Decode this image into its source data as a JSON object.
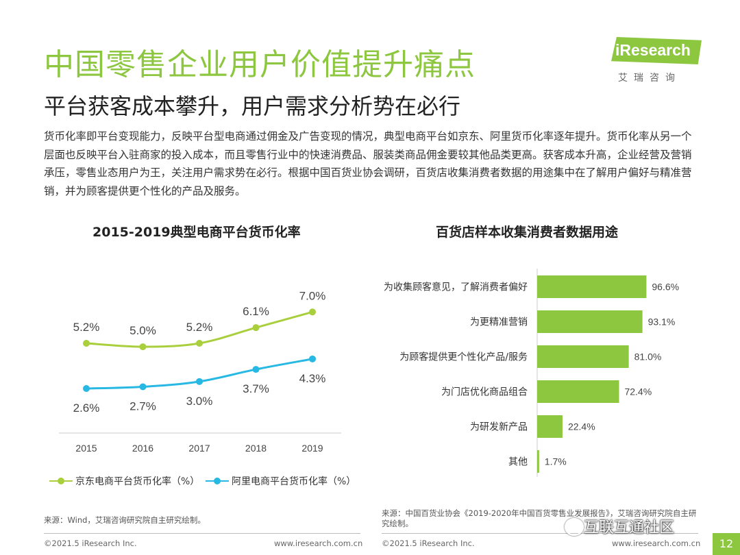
{
  "header": {
    "title": "中国零售企业用户价值提升痛点",
    "subtitle": "平台获客成本攀升，用户需求分析势在必行"
  },
  "logo": {
    "brand": "iResearch",
    "sub": "艾瑞咨询"
  },
  "intro": "货币化率即平台变现能力，反映平台型电商通过佣金及广告变现的情况，典型电商平台如京东、阿里货币化率逐年提升。货币化率从另一个层面也反映平台入驻商家的投入成本，而且零售行业中的快速消费品、服装类商品佣金要较其他品类更高。获客成本升高，企业经营及营销承压，零售业态用户为王，关注用户需求势在必行。根据中国百货业协会调研，百货店收集消费者数据的用途集中在了解用户偏好与精准营销，并为顾客提供更个性化的产品及服务。",
  "chart_data": [
    {
      "type": "line",
      "title": "2015-2019典型电商平台货币化率",
      "categories": [
        "2015",
        "2016",
        "2017",
        "2018",
        "2019"
      ],
      "series": [
        {
          "name": "京东电商平台货币化率（%）",
          "values": [
            5.2,
            5.0,
            5.2,
            6.1,
            7.0
          ],
          "labels": [
            "5.2%",
            "5.0%",
            "5.2%",
            "6.1%",
            "7.0%"
          ],
          "color": "#a9cf3c"
        },
        {
          "name": "阿里电商平台货币化率（%）",
          "values": [
            2.6,
            2.7,
            3.0,
            3.7,
            4.3
          ],
          "labels": [
            "2.6%",
            "2.7%",
            "3.0%",
            "3.7%",
            "4.3%"
          ],
          "color": "#27b8e3"
        }
      ],
      "ylim": [
        0,
        8.5
      ],
      "grid": false
    },
    {
      "type": "bar",
      "orientation": "horizontal",
      "title": "百货店样本收集消费者数据用途",
      "categories": [
        "为收集顾客意见，了解消费者偏好",
        "为更精准营销",
        "为顾客提供更个性化产品/服务",
        "为门店优化商品组合",
        "为研发新产品",
        "其他"
      ],
      "values": [
        96.6,
        93.1,
        81.0,
        72.4,
        22.4,
        1.7
      ],
      "labels": [
        "96.6%",
        "93.1%",
        "81.0%",
        "72.4%",
        "22.4%",
        "1.7%"
      ],
      "xlim": [
        0,
        100
      ],
      "color": "#8dc63f"
    }
  ],
  "sources": {
    "left": "来源：Wind，艾瑞咨询研究院自主研究绘制。",
    "right": "来源：中国百货业协会《2019-2020年中国百货零售业发展报告》，艾瑞咨询研究院自主研究绘制。"
  },
  "footer": {
    "copyright": "©2021.5 iResearch Inc.",
    "url": "www.iresearch.com.cn",
    "page": "12"
  },
  "watermark": "互联互通社区"
}
